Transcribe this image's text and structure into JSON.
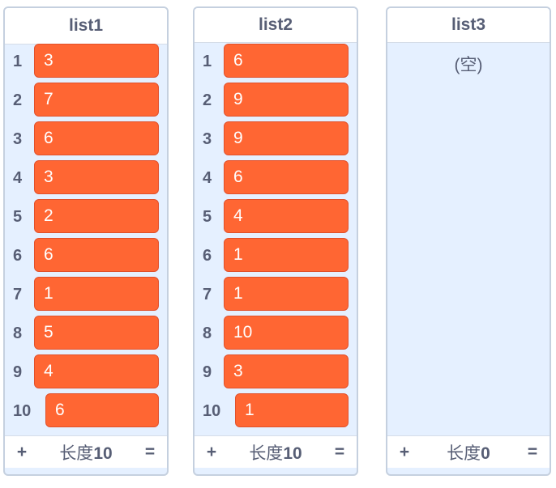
{
  "lists": [
    {
      "name": "list1",
      "items": [
        "3",
        "7",
        "6",
        "3",
        "2",
        "6",
        "1",
        "5",
        "4",
        "6"
      ],
      "length_label": "长度",
      "length_value": "10",
      "empty_label": ""
    },
    {
      "name": "list2",
      "items": [
        "6",
        "9",
        "9",
        "6",
        "4",
        "1",
        "1",
        "10",
        "3",
        "1"
      ],
      "length_label": "长度",
      "length_value": "10",
      "empty_label": ""
    },
    {
      "name": "list3",
      "items": [],
      "length_label": "长度",
      "length_value": "0",
      "empty_label": "(空)"
    }
  ],
  "footer": {
    "add_symbol": "+",
    "resize_symbol": "="
  },
  "colors": {
    "cell": "#ff6633",
    "panel": "#e5f0ff",
    "text": "#575e75"
  }
}
